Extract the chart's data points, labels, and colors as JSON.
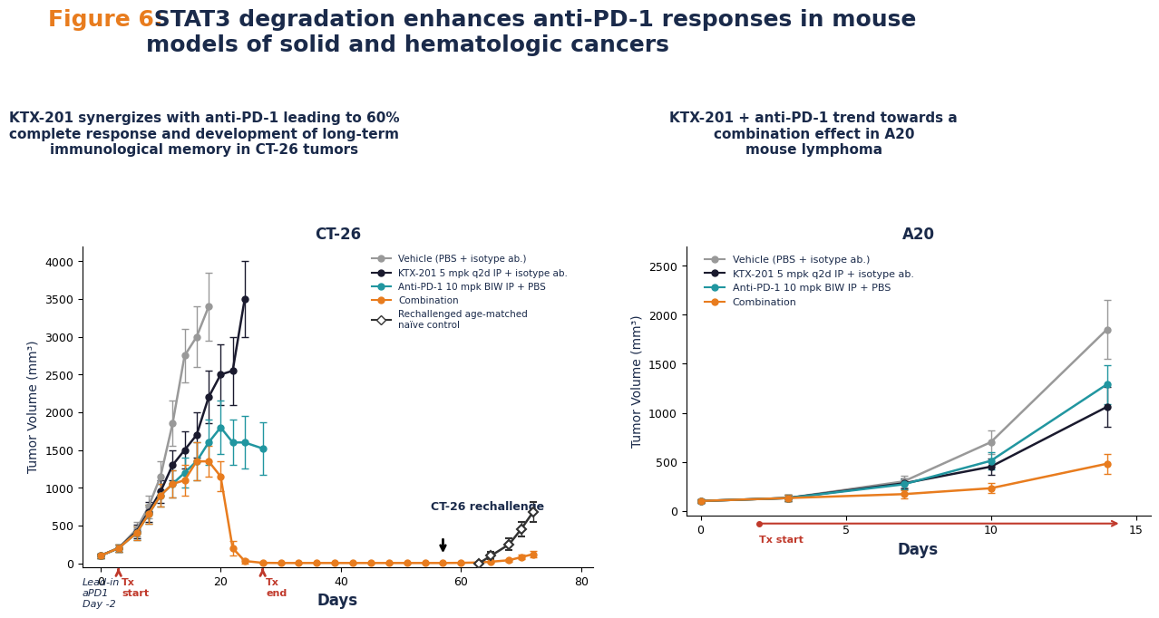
{
  "title_figure6": "Figure 6:",
  "title_rest": " STAT3 degradation enhances anti-PD-1 responses in mouse\nmodels of solid and hematologic cancers",
  "subtitle_left": "KTX-201 synergizes with anti-PD-1 leading to 60%\ncomplete response and development of long-term\nimmunological memory in CT-26 tumors",
  "subtitle_right": "KTX-201 + anti-PD-1 trend towards a\ncombination effect in A20\nmouse lymphoma",
  "ct26_title": "CT-26",
  "a20_title": "A20",
  "ylabel": "Tumor Volume (mm³)",
  "xlabel": "Days",
  "colors": {
    "vehicle": "#999999",
    "ktx201": "#1a1a2e",
    "antipd1": "#2196a0",
    "combo": "#e87c1e",
    "rechallenge": "#333333",
    "fig6_orange": "#e87c1e",
    "fig6_dark": "#1a2a4a",
    "subtitle_dark": "#1a2a4a",
    "tx_red": "#c0392b",
    "arrow_dark": "#1a2a4a"
  },
  "ct26": {
    "vehicle_x": [
      0,
      3,
      6,
      8,
      10,
      12,
      14,
      16,
      18,
      20,
      22,
      24,
      27
    ],
    "vehicle_y": [
      100,
      200,
      450,
      750,
      1150,
      1850,
      2750,
      3000,
      3400,
      null,
      null,
      null,
      null
    ],
    "vehicle_yerr": [
      30,
      50,
      100,
      150,
      200,
      300,
      350,
      400,
      450,
      null,
      null,
      null,
      null
    ],
    "ktx_x": [
      0,
      3,
      6,
      8,
      10,
      12,
      14,
      16,
      18,
      20,
      22,
      24,
      27
    ],
    "ktx_y": [
      100,
      200,
      420,
      680,
      950,
      1300,
      1500,
      1700,
      2200,
      2500,
      2550,
      3500,
      null
    ],
    "ktx_yerr": [
      30,
      50,
      90,
      130,
      150,
      200,
      250,
      300,
      350,
      400,
      450,
      500,
      null
    ],
    "antipd1_x": [
      0,
      3,
      6,
      8,
      10,
      12,
      14,
      16,
      18,
      20,
      22,
      24,
      27
    ],
    "antipd1_y": [
      100,
      200,
      400,
      650,
      900,
      1050,
      1200,
      1350,
      1600,
      1800,
      1600,
      1600,
      1520
    ],
    "antipd1_yerr": [
      30,
      50,
      90,
      130,
      150,
      180,
      200,
      250,
      300,
      350,
      300,
      350,
      350
    ],
    "combo_x": [
      0,
      3,
      6,
      8,
      10,
      12,
      14,
      16,
      18,
      20,
      22,
      24,
      27,
      30,
      33,
      36,
      39,
      42,
      45,
      48,
      51,
      54,
      57,
      60,
      63,
      65,
      68,
      70,
      72
    ],
    "combo_y": [
      100,
      200,
      400,
      650,
      900,
      1050,
      1100,
      1350,
      1350,
      1150,
      200,
      30,
      5,
      3,
      3,
      3,
      3,
      3,
      3,
      3,
      3,
      3,
      3,
      5,
      10,
      20,
      40,
      80,
      120
    ],
    "combo_yerr": [
      30,
      50,
      90,
      130,
      150,
      180,
      200,
      250,
      200,
      200,
      100,
      30,
      5,
      3,
      3,
      3,
      3,
      3,
      3,
      3,
      3,
      3,
      3,
      5,
      10,
      15,
      20,
      30,
      40
    ],
    "rechallenge_x": [
      63,
      65,
      68,
      70,
      72
    ],
    "rechallenge_y": [
      0,
      100,
      250,
      450,
      680
    ],
    "rechallenge_yerr": [
      10,
      50,
      80,
      100,
      130
    ],
    "tx_start": 3,
    "tx_end": 27,
    "rechallenge_day": 57,
    "xlim": [
      -3,
      82
    ],
    "ylim": [
      -50,
      4200
    ]
  },
  "a20": {
    "vehicle_x": [
      0,
      3,
      7,
      10,
      14
    ],
    "vehicle_y": [
      100,
      130,
      300,
      700,
      1850
    ],
    "vehicle_yerr": [
      20,
      30,
      60,
      120,
      300
    ],
    "ktx_x": [
      0,
      3,
      7,
      10,
      14
    ],
    "ktx_y": [
      100,
      130,
      280,
      450,
      1060
    ],
    "ktx_yerr": [
      20,
      30,
      50,
      80,
      200
    ],
    "antipd1_x": [
      0,
      3,
      7,
      10,
      14
    ],
    "antipd1_y": [
      100,
      130,
      270,
      510,
      1290
    ],
    "antipd1_yerr": [
      20,
      30,
      50,
      90,
      200
    ],
    "combo_x": [
      0,
      3,
      7,
      10,
      14
    ],
    "combo_y": [
      100,
      130,
      170,
      230,
      480
    ],
    "combo_yerr": [
      20,
      30,
      40,
      50,
      100
    ],
    "tx_start": 2,
    "xlim": [
      -0.5,
      15.5
    ],
    "ylim": [
      -50,
      2700
    ]
  }
}
